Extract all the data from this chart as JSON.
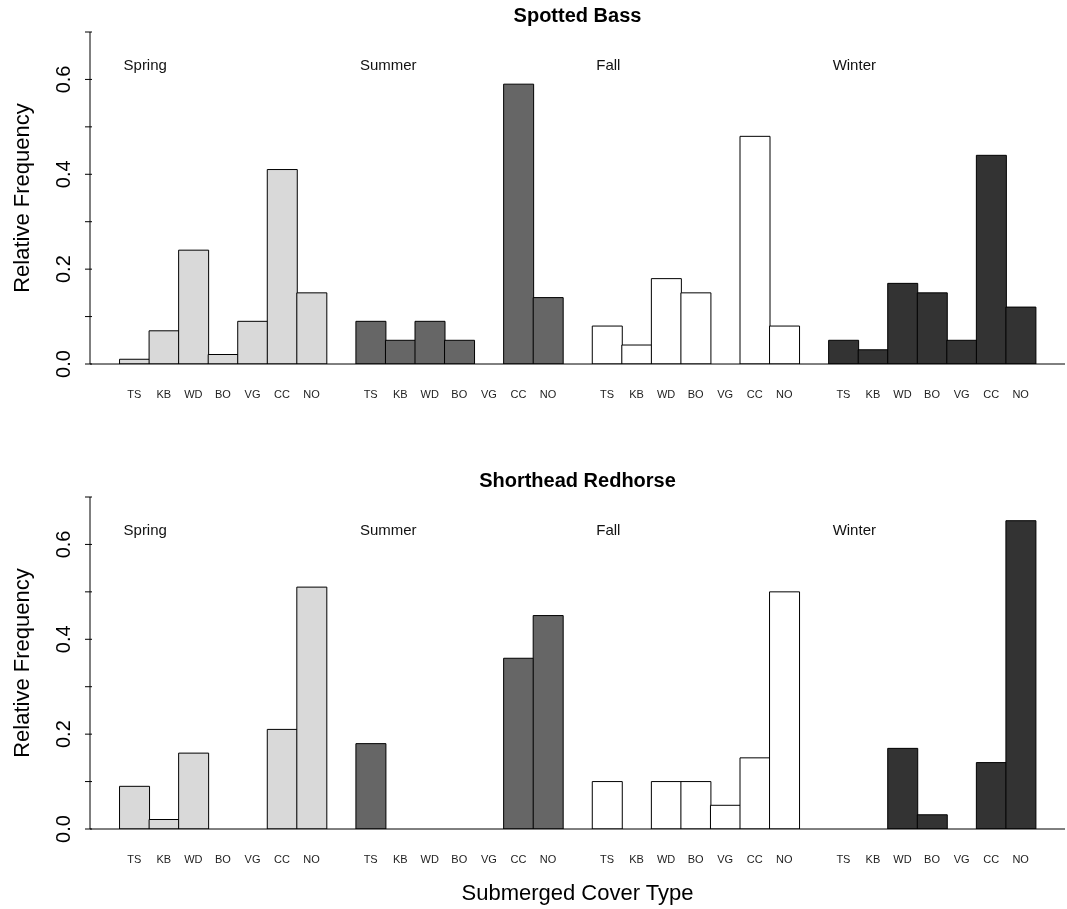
{
  "chart_data": [
    {
      "type": "bar",
      "title": "Spotted Bass",
      "annotations": [
        "Spring",
        "Summer",
        "Fall",
        "Winter"
      ],
      "ylabel": "Relative Frequency",
      "ylim": [
        0,
        0.7
      ],
      "yticks": [
        {
          "value": 0,
          "label": "0.0"
        },
        {
          "value": 0.1,
          "label": null
        },
        0.2,
        {
          "value": 0.3,
          "label": null
        },
        0.4,
        {
          "value": 0.5,
          "label": null
        },
        0.6,
        {
          "value": 0.7,
          "label": null
        }
      ],
      "categories": [
        "TS",
        "KB",
        "WD",
        "BO",
        "VG",
        "CC",
        "NO",
        null,
        "TS",
        "KB",
        "WD",
        "BO",
        "VG",
        "CC",
        "NO",
        null,
        "TS",
        "KB",
        "WD",
        "BO",
        "VG",
        "CC",
        "NO",
        null,
        "TS",
        "KB",
        "WD",
        "BO",
        "VG",
        "CC",
        "NO"
      ],
      "series": [
        {
          "color": "#d9d9d9",
          "values": [
            0.01,
            0.07,
            0.24,
            0.02,
            0.09,
            0.41,
            0.15,
            null,
            null,
            null,
            null,
            null,
            null,
            null,
            null,
            null,
            null,
            null,
            null,
            null,
            null,
            null,
            null,
            null,
            null,
            null,
            null,
            null,
            null,
            null,
            null
          ]
        },
        {
          "color": "#666666",
          "values": [
            null,
            null,
            null,
            null,
            null,
            null,
            null,
            null,
            0.09,
            0.05,
            0.09,
            0.05,
            0,
            0.59,
            0.14,
            null,
            null,
            null,
            null,
            null,
            null,
            null,
            null,
            null,
            null,
            null,
            null,
            null,
            null,
            null,
            null
          ]
        },
        {
          "color": "#ffffff",
          "values": [
            null,
            null,
            null,
            null,
            null,
            null,
            null,
            null,
            null,
            null,
            null,
            null,
            null,
            null,
            null,
            null,
            0.08,
            0.04,
            0.18,
            0.15,
            0,
            0.48,
            0.08,
            null,
            null,
            null,
            null,
            null,
            null,
            null,
            null
          ]
        },
        {
          "color": "#333333",
          "values": [
            null,
            null,
            null,
            null,
            null,
            null,
            null,
            null,
            null,
            null,
            null,
            null,
            null,
            null,
            null,
            null,
            null,
            null,
            null,
            null,
            null,
            null,
            null,
            null,
            0.05,
            0.03,
            0.17,
            0.15,
            0.05,
            0.44,
            0.12
          ]
        }
      ]
    },
    {
      "type": "bar",
      "title": "Shorthead Redhorse",
      "annotations": [
        "Spring",
        "Summer",
        "Fall",
        "Winter"
      ],
      "ylabel": "Relative Frequency",
      "xlabel": "Submerged Cover Type",
      "ylim": [
        0,
        0.7
      ],
      "yticks": [
        {
          "value": 0,
          "label": "0.0"
        },
        {
          "value": 0.1,
          "label": null
        },
        0.2,
        {
          "value": 0.3,
          "label": null
        },
        0.4,
        {
          "value": 0.5,
          "label": null
        },
        0.6,
        {
          "value": 0.7,
          "label": null
        }
      ],
      "categories": [
        "TS",
        "KB",
        "WD",
        "BO",
        "VG",
        "CC",
        "NO",
        null,
        "TS",
        "KB",
        "WD",
        "BO",
        "VG",
        "CC",
        "NO",
        null,
        "TS",
        "KB",
        "WD",
        "BO",
        "VG",
        "CC",
        "NO",
        null,
        "TS",
        "KB",
        "WD",
        "BO",
        "VG",
        "CC",
        "NO"
      ],
      "series": [
        {
          "color": "#d9d9d9",
          "values": [
            0.09,
            0.02,
            0.16,
            0,
            0,
            0.21,
            0.51,
            null,
            null,
            null,
            null,
            null,
            null,
            null,
            null,
            null,
            null,
            null,
            null,
            null,
            null,
            null,
            null,
            null,
            null,
            null,
            null,
            null,
            null,
            null,
            null
          ]
        },
        {
          "color": "#666666",
          "values": [
            null,
            null,
            null,
            null,
            null,
            null,
            null,
            null,
            0.18,
            0,
            0,
            0,
            0,
            0.36,
            0.45,
            null,
            null,
            null,
            null,
            null,
            null,
            null,
            null,
            null,
            null,
            null,
            null,
            null,
            null,
            null,
            null
          ]
        },
        {
          "color": "#ffffff",
          "values": [
            null,
            null,
            null,
            null,
            null,
            null,
            null,
            null,
            null,
            null,
            null,
            null,
            null,
            null,
            null,
            null,
            0.1,
            0,
            0.1,
            0.1,
            0.05,
            0.15,
            0.5,
            null,
            null,
            null,
            null,
            null,
            null,
            null,
            null
          ]
        },
        {
          "color": "#333333",
          "values": [
            null,
            null,
            null,
            null,
            null,
            null,
            null,
            null,
            null,
            null,
            null,
            null,
            null,
            null,
            null,
            null,
            null,
            null,
            null,
            null,
            null,
            null,
            null,
            null,
            0,
            0,
            0.17,
            0.03,
            0,
            0.14,
            0.65
          ]
        }
      ]
    }
  ]
}
